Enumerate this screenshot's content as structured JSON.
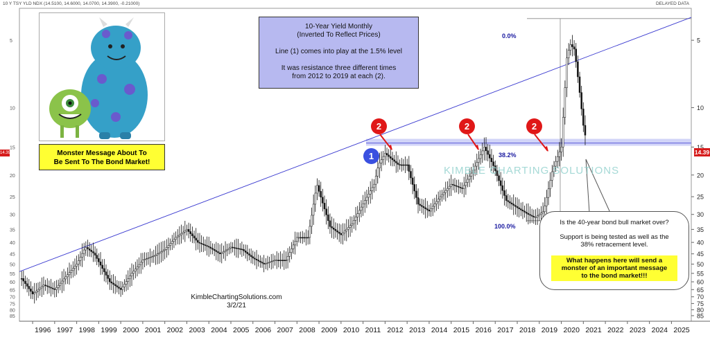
{
  "header": {
    "symbol_line": "10 Y TSY YLD NDX (14.5100, 14.6000, 14.0700, 14.3900, -0.21000)",
    "status": "DELAYED DATA"
  },
  "info_box": {
    "title": "10-Year Yield Monthly",
    "subtitle": "(Inverted To Reflect Prices)",
    "line1": "Line (1) comes into play at the 1.5% level",
    "line2": "It was resistance three different times",
    "line3": "from 2012 to 2019 at each (2)."
  },
  "monster": {
    "caption_line1": "Monster Message About To",
    "caption_line2": "Be Sent To The Bond Market!"
  },
  "callout": {
    "q": "Is the 40-year bond bull market over?",
    "s1": "Support is being tested as well as the",
    "s2": "38% retracement level.",
    "h1": "What happens here will send a",
    "h2": "monster of an important message",
    "h3": "to the bond market!!!"
  },
  "credit": {
    "site": "KimbleChartingSolutions.com",
    "date": "3/2/21"
  },
  "watermark": "KIMBLE CHARTING SOLUTIONS",
  "badges": {
    "line_label": "1",
    "resistance_label": "2"
  },
  "fib": {
    "top": "0.0%",
    "mid": "38.2%",
    "bottom": "100.0%"
  },
  "price_tag": "14.39",
  "price_tag_left": "14.390",
  "colors": {
    "candle": "#111111",
    "trendline": "#3a3ad0",
    "band": "#c9ccf7",
    "badge_red": "#e01818",
    "badge_blue": "#3a50e0",
    "highlight": "#ffff33"
  },
  "chart_data": {
    "type": "bar",
    "title": "10-Year Yield Monthly",
    "subtitle": "(Inverted To Reflect Prices)",
    "y_axis": {
      "scale": "log",
      "inverted": true,
      "ticks": [
        5,
        10,
        15,
        20,
        25,
        30,
        35,
        40,
        45,
        50,
        55,
        60,
        65,
        70,
        75,
        80,
        85
      ],
      "ylim": [
        3.6,
        90
      ]
    },
    "x_axis": {
      "ticks": [
        "1996",
        "1997",
        "1998",
        "1999",
        "2000",
        "2001",
        "2002",
        "2003",
        "2004",
        "2005",
        "2006",
        "2007",
        "2008",
        "2009",
        "2010",
        "2011",
        "2012",
        "2013",
        "2014",
        "2015",
        "2016",
        "2017",
        "2018",
        "2019",
        "2020",
        "2021",
        "2022",
        "2023",
        "2024",
        "2025"
      ],
      "xlim": [
        1995.4,
        2025.9
      ]
    },
    "series": [
      {
        "values_x": [
          1995.5,
          1996.0,
          1996.5,
          1997.0,
          1997.5,
          1998.0,
          1998.4,
          1998.8,
          1999.5,
          2000.0,
          2000.5,
          2001.0,
          2001.5,
          2002.0,
          2002.5,
          2003.0,
          2003.5,
          2004.0,
          2004.5,
          2005.0,
          2005.5,
          2006.0,
          2006.5,
          2007.0,
          2007.5,
          2008.0,
          2008.5,
          2008.9,
          2009.5,
          2010.0,
          2010.5,
          2010.9,
          2011.5,
          2011.7,
          2012.0,
          2012.3,
          2012.6,
          2013.0,
          2013.5,
          2014.0,
          2014.5,
          2015.0,
          2015.5,
          2016.0,
          2016.5,
          2016.9,
          2017.5,
          2018.0,
          2018.5,
          2018.8,
          2019.2,
          2019.6,
          2020.0,
          2020.25,
          2020.4,
          2020.6,
          2020.8,
          2021.0,
          2021.15
        ],
        "values": [
          58,
          68,
          62,
          65,
          57,
          50,
          42,
          45,
          60,
          65,
          55,
          48,
          46,
          43,
          38,
          35,
          40,
          42,
          45,
          42,
          43,
          47,
          50,
          48,
          48,
          38,
          38,
          22,
          34,
          37,
          33,
          28,
          22,
          18,
          16,
          17,
          18,
          18,
          27,
          29,
          25,
          22,
          23,
          19,
          15,
          18,
          26,
          28,
          30,
          31,
          29,
          19,
          15,
          6.0,
          5.2,
          5.5,
          8.0,
          12.0,
          14.39
        ],
        "band_level": 14.39
      }
    ],
    "annotations": {
      "resistance_line": {
        "x": [
          1995.4,
          2025.9
        ],
        "y": [
          54,
          3.95
        ]
      },
      "fib_0_0": 4.0,
      "fib_38_2": 14.39,
      "fib_100": 32.0
    }
  }
}
